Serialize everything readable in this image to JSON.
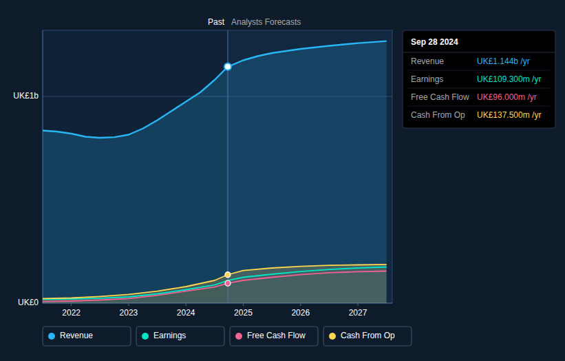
{
  "chart_data": {
    "type": "line",
    "xlim": [
      2021.5,
      2027.6
    ],
    "ylim": [
      0.0,
      1.32
    ],
    "xticks": [
      2022,
      2023,
      2024,
      2025,
      2026,
      2027
    ],
    "yticks": [
      {
        "value": 0.0,
        "label": "UK£0"
      },
      {
        "value": 1.0,
        "label": "UK£1b"
      }
    ],
    "grid": true,
    "legend": "bottom",
    "divider": {
      "x": 2024.73,
      "past_label": "Past",
      "forecast_label": "Analysts Forecasts"
    },
    "series": [
      {
        "name": "Revenue",
        "color": "#29b6f6",
        "type": "area",
        "marker": "circle",
        "x": [
          2021.5,
          2021.75,
          2022.0,
          2022.25,
          2022.5,
          2022.75,
          2023.0,
          2023.25,
          2023.5,
          2023.75,
          2024.0,
          2024.25,
          2024.5,
          2024.73,
          2025.0,
          2025.25,
          2025.5,
          2025.75,
          2026.0,
          2026.5,
          2027.0,
          2027.5
        ],
        "values": [
          0.835,
          0.83,
          0.82,
          0.805,
          0.8,
          0.803,
          0.815,
          0.845,
          0.885,
          0.93,
          0.975,
          1.02,
          1.08,
          1.144,
          1.175,
          1.195,
          1.21,
          1.22,
          1.23,
          1.245,
          1.258,
          1.268
        ]
      },
      {
        "name": "Earnings",
        "color": "#00e5c9",
        "type": "line",
        "x": [
          2021.5,
          2022.0,
          2022.5,
          2023.0,
          2023.5,
          2024.0,
          2024.5,
          2024.73,
          2025.0,
          2025.5,
          2026.0,
          2026.5,
          2027.0,
          2027.5
        ],
        "values": [
          0.018,
          0.02,
          0.024,
          0.03,
          0.045,
          0.065,
          0.088,
          0.1093,
          0.125,
          0.14,
          0.153,
          0.163,
          0.17,
          0.175
        ]
      },
      {
        "name": "Free Cash Flow",
        "color": "#f06292",
        "type": "line",
        "marker": "circle",
        "x": [
          2021.5,
          2022.0,
          2022.5,
          2023.0,
          2023.5,
          2024.0,
          2024.5,
          2024.73,
          2025.0,
          2025.5,
          2026.0,
          2026.5,
          2027.0,
          2027.5
        ],
        "values": [
          0.008,
          0.01,
          0.015,
          0.022,
          0.038,
          0.058,
          0.078,
          0.096,
          0.11,
          0.125,
          0.138,
          0.147,
          0.152,
          0.155
        ]
      },
      {
        "name": "Cash From Op",
        "color": "#ffd54f",
        "type": "area",
        "marker": "circle",
        "x": [
          2021.5,
          2022.0,
          2022.5,
          2023.0,
          2023.5,
          2024.0,
          2024.5,
          2024.73,
          2025.0,
          2025.5,
          2026.0,
          2026.5,
          2027.0,
          2027.5
        ],
        "values": [
          0.022,
          0.025,
          0.032,
          0.042,
          0.058,
          0.08,
          0.11,
          0.1375,
          0.158,
          0.17,
          0.178,
          0.183,
          0.185,
          0.187
        ]
      }
    ],
    "tooltip": {
      "title": "Sep 28 2024",
      "rows": [
        {
          "label": "Revenue",
          "value": "UK£1.144b /yr",
          "color": "#29b6f6"
        },
        {
          "label": "Earnings",
          "value": "UK£109.300m /yr",
          "color": "#00e5c9"
        },
        {
          "label": "Free Cash Flow",
          "value": "UK£96.000m /yr",
          "color": "#f06292"
        },
        {
          "label": "Cash From Op",
          "value": "UK£137.500m /yr",
          "color": "#ffd54f"
        }
      ]
    }
  }
}
